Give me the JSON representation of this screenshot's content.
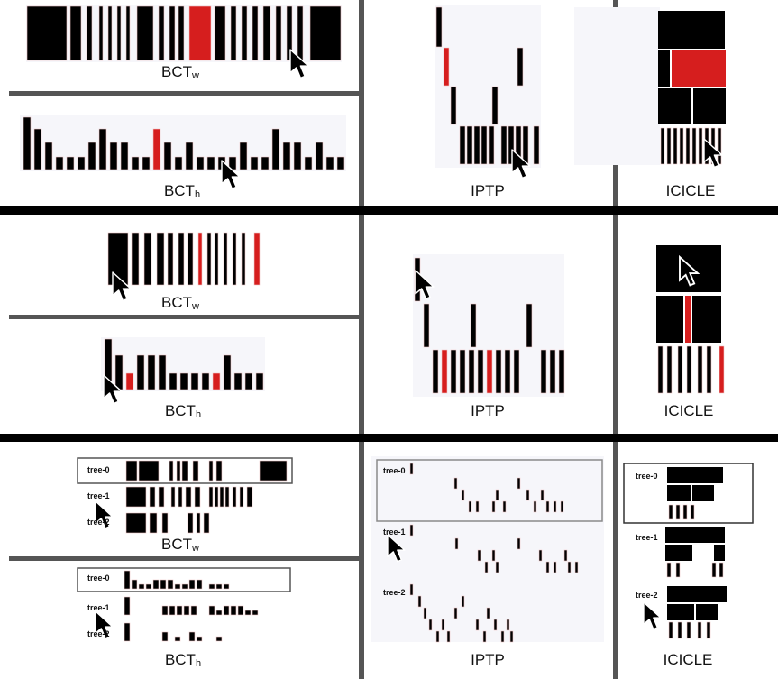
{
  "figure": {
    "rows": [
      {
        "panels": {
          "bct_w": {
            "label_main": "BCT",
            "label_sub": "w"
          },
          "bct_h": {
            "label_main": "BCT",
            "label_sub": "h"
          },
          "iptp": {
            "label": "IPTP"
          },
          "icicle": {
            "label": "ICICLE"
          }
        }
      },
      {
        "panels": {
          "bct_w": {
            "label_main": "BCT",
            "label_sub": "w"
          },
          "bct_h": {
            "label_main": "BCT",
            "label_sub": "h"
          },
          "iptp": {
            "label": "IPTP"
          },
          "icicle": {
            "label": "ICICLE"
          }
        }
      },
      {
        "panels": {
          "bct_w": {
            "label_main": "BCT",
            "label_sub": "w",
            "trees": [
              "tree-0",
              "tree-1",
              "tree-2"
            ]
          },
          "bct_h": {
            "label_main": "BCT",
            "label_sub": "h",
            "trees": [
              "tree-0",
              "tree-1",
              "tree-2"
            ]
          },
          "iptp": {
            "label": "IPTP",
            "trees": [
              "tree-0",
              "tree-1",
              "tree-2"
            ]
          },
          "icicle": {
            "label": "ICICLE",
            "trees": [
              "tree-0",
              "tree-1",
              "tree-2"
            ]
          }
        }
      }
    ],
    "colors": {
      "bar": "#000000",
      "highlight": "#d61e1e",
      "divider": "#555555",
      "row_separator": "#000000",
      "panel_bg": "#f6f6fa"
    }
  }
}
